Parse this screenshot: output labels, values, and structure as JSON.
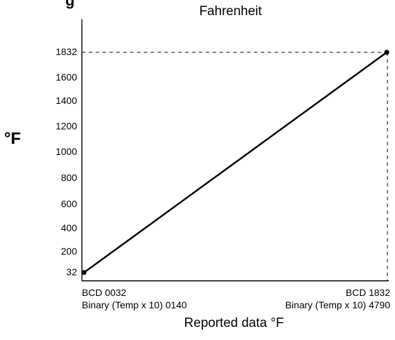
{
  "chart_data": {
    "type": "line",
    "title": "Fahrenheit",
    "title_clipped_left": "g",
    "ylabel": "°F",
    "xlabel": "Reported data °F",
    "y_ticks": [
      32,
      200,
      400,
      600,
      800,
      1000,
      1200,
      1400,
      1600,
      1832
    ],
    "x_endpoints": [
      {
        "bcd": "BCD 0032",
        "binary": "Binary (Temp x 10) 0140"
      },
      {
        "bcd": "BCD 1832",
        "binary": "Binary (Temp x 10) 4790"
      }
    ],
    "series": [
      {
        "values": [
          32,
          1832
        ]
      }
    ],
    "ylim": [
      32,
      1832
    ],
    "reference_line_value": 1832,
    "grid": false,
    "colors": {
      "line": "#000000",
      "axis": "#000000",
      "background": "#ffffff"
    }
  }
}
